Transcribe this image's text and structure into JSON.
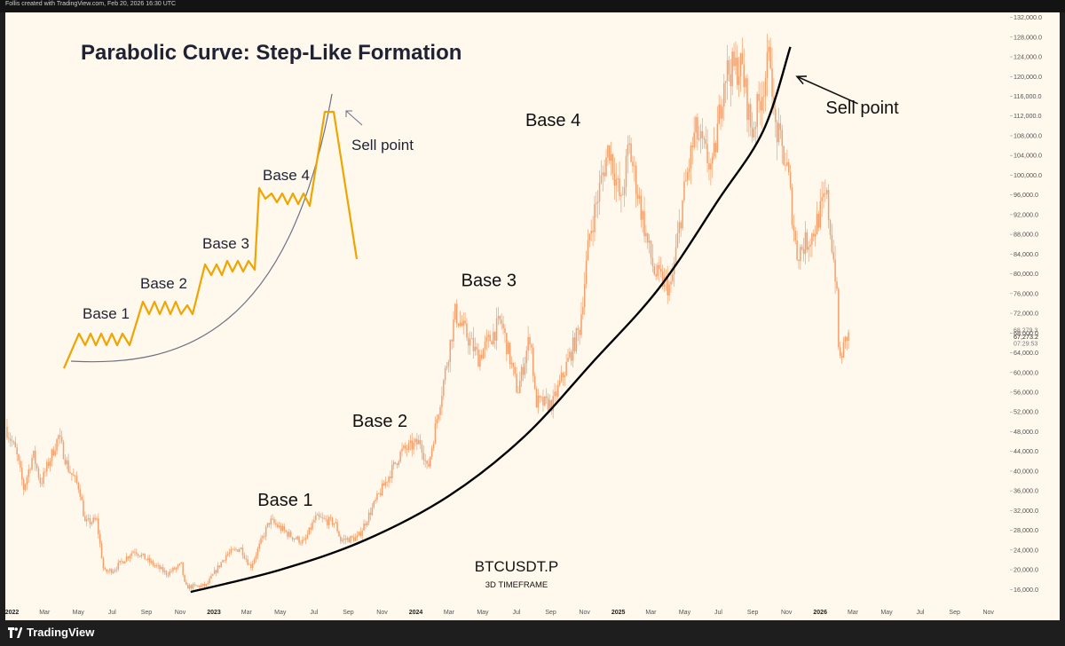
{
  "header": {
    "attribution": "Follis created with TradingView.com, Feb 20, 2026 16:30 UTC"
  },
  "footer": {
    "brand": "TradingView",
    "logo_icon": "tradingview-logo-icon"
  },
  "chart_data": {
    "type": "candlestick",
    "title": "Parabolic Curve: Step-Like Formation",
    "symbol": "BTCUSDT.P",
    "timeframe": "3D TIMEFRAME",
    "candle_color": "#f4a06c",
    "curve_color": "#000000",
    "price_labels": {
      "last_price": "67,273.2",
      "countdown": "07:29:53",
      "hidden_above": "68,279.3"
    },
    "y_axis": {
      "ylim": [
        13000,
        133000
      ],
      "ticks": [
        16000,
        20000,
        24000,
        28000,
        32000,
        36000,
        40000,
        44000,
        48000,
        52000,
        56000,
        60000,
        64000,
        68000,
        72000,
        76000,
        80000,
        84000,
        88000,
        92000,
        96000,
        100000,
        104000,
        108000,
        112000,
        116000,
        120000,
        124000,
        128000,
        132000
      ],
      "tick_labels": [
        "16,000.0",
        "20,000.0",
        "24,000.0",
        "28,000.0",
        "32,000.0",
        "36,000.0",
        "40,000.0",
        "44,000.0",
        "48,000.0",
        "52,000.0",
        "56,000.0",
        "60,000.0",
        "64,000.0",
        "68,000.0",
        "72,000.0",
        "76,000.0",
        "80,000.0",
        "84,000.0",
        "88,000.0",
        "92,000.0",
        "96,000.0",
        "100,000.0",
        "104,000.0",
        "108,000.0",
        "112,000.0",
        "116,000.0",
        "120,000.0",
        "124,000.0",
        "128,000.0",
        "132,000.0"
      ]
    },
    "x_axis": {
      "xlim": [
        "2021-12-20",
        "2026-12-10"
      ],
      "ticks": [
        {
          "date": "2022-01-01",
          "label": "2022",
          "major": true
        },
        {
          "date": "2022-03-01",
          "label": "Mar"
        },
        {
          "date": "2022-05-01",
          "label": "May"
        },
        {
          "date": "2022-07-01",
          "label": "Jul"
        },
        {
          "date": "2022-09-01",
          "label": "Sep"
        },
        {
          "date": "2022-11-01",
          "label": "Nov"
        },
        {
          "date": "2023-01-01",
          "label": "2023",
          "major": true
        },
        {
          "date": "2023-03-01",
          "label": "Mar"
        },
        {
          "date": "2023-05-01",
          "label": "May"
        },
        {
          "date": "2023-07-01",
          "label": "Jul"
        },
        {
          "date": "2023-09-01",
          "label": "Sep"
        },
        {
          "date": "2023-11-01",
          "label": "Nov"
        },
        {
          "date": "2024-01-01",
          "label": "2024",
          "major": true
        },
        {
          "date": "2024-03-01",
          "label": "Mar"
        },
        {
          "date": "2024-05-01",
          "label": "May"
        },
        {
          "date": "2024-07-01",
          "label": "Jul"
        },
        {
          "date": "2024-09-01",
          "label": "Sep"
        },
        {
          "date": "2024-11-01",
          "label": "Nov"
        },
        {
          "date": "2025-01-01",
          "label": "2025",
          "major": true
        },
        {
          "date": "2025-03-01",
          "label": "Mar"
        },
        {
          "date": "2025-05-01",
          "label": "May"
        },
        {
          "date": "2025-07-01",
          "label": "Jul"
        },
        {
          "date": "2025-09-01",
          "label": "Sep"
        },
        {
          "date": "2025-11-01",
          "label": "Nov"
        },
        {
          "date": "2026-01-01",
          "label": "2026",
          "major": true
        },
        {
          "date": "2026-03-01",
          "label": "Mar"
        },
        {
          "date": "2026-05-01",
          "label": "May"
        },
        {
          "date": "2026-07-01",
          "label": "Jul"
        },
        {
          "date": "2026-09-01",
          "label": "Sep"
        },
        {
          "date": "2026-11-01",
          "label": "Nov"
        }
      ]
    },
    "price_path": [
      {
        "date": "2021-12-22",
        "price": 49000
      },
      {
        "date": "2022-01-10",
        "price": 44000
      },
      {
        "date": "2022-01-24",
        "price": 36500
      },
      {
        "date": "2022-02-10",
        "price": 43500
      },
      {
        "date": "2022-02-24",
        "price": 37500
      },
      {
        "date": "2022-03-28",
        "price": 47000
      },
      {
        "date": "2022-04-15",
        "price": 40500
      },
      {
        "date": "2022-05-05",
        "price": 36500
      },
      {
        "date": "2022-05-15",
        "price": 29500
      },
      {
        "date": "2022-06-05",
        "price": 30000
      },
      {
        "date": "2022-06-18",
        "price": 19500
      },
      {
        "date": "2022-07-05",
        "price": 20000
      },
      {
        "date": "2022-08-12",
        "price": 24000
      },
      {
        "date": "2022-09-10",
        "price": 21500
      },
      {
        "date": "2022-10-10",
        "price": 19200
      },
      {
        "date": "2022-11-05",
        "price": 21000
      },
      {
        "date": "2022-11-12",
        "price": 16500
      },
      {
        "date": "2022-12-20",
        "price": 16800
      },
      {
        "date": "2023-01-25",
        "price": 23000
      },
      {
        "date": "2023-02-20",
        "price": 24500
      },
      {
        "date": "2023-03-10",
        "price": 20500
      },
      {
        "date": "2023-04-14",
        "price": 30000
      },
      {
        "date": "2023-05-20",
        "price": 27000
      },
      {
        "date": "2023-06-15",
        "price": 25500
      },
      {
        "date": "2023-07-05",
        "price": 30500
      },
      {
        "date": "2023-08-10",
        "price": 29500
      },
      {
        "date": "2023-08-20",
        "price": 26000
      },
      {
        "date": "2023-09-20",
        "price": 26500
      },
      {
        "date": "2023-10-25",
        "price": 34500
      },
      {
        "date": "2023-12-08",
        "price": 44000
      },
      {
        "date": "2024-01-12",
        "price": 46000
      },
      {
        "date": "2024-01-24",
        "price": 40000
      },
      {
        "date": "2024-02-28",
        "price": 62000
      },
      {
        "date": "2024-03-14",
        "price": 72000
      },
      {
        "date": "2024-04-25",
        "price": 63000
      },
      {
        "date": "2024-06-05",
        "price": 70500
      },
      {
        "date": "2024-07-05",
        "price": 56000
      },
      {
        "date": "2024-07-28",
        "price": 68000
      },
      {
        "date": "2024-08-06",
        "price": 54000
      },
      {
        "date": "2024-09-06",
        "price": 53500
      },
      {
        "date": "2024-10-25",
        "price": 69000
      },
      {
        "date": "2024-11-12",
        "price": 88000
      },
      {
        "date": "2024-12-17",
        "price": 106000
      },
      {
        "date": "2025-01-08",
        "price": 94000
      },
      {
        "date": "2025-01-22",
        "price": 106000
      },
      {
        "date": "2025-02-25",
        "price": 86000
      },
      {
        "date": "2025-03-10",
        "price": 80000
      },
      {
        "date": "2025-04-08",
        "price": 77000
      },
      {
        "date": "2025-05-01",
        "price": 96000
      },
      {
        "date": "2025-05-22",
        "price": 109000
      },
      {
        "date": "2025-06-22",
        "price": 101000
      },
      {
        "date": "2025-07-14",
        "price": 121000
      },
      {
        "date": "2025-08-14",
        "price": 122000
      },
      {
        "date": "2025-09-01",
        "price": 108500
      },
      {
        "date": "2025-10-06",
        "price": 125000
      },
      {
        "date": "2025-10-11",
        "price": 111000
      },
      {
        "date": "2025-11-05",
        "price": 101000
      },
      {
        "date": "2025-11-21",
        "price": 84000
      },
      {
        "date": "2025-12-20",
        "price": 88000
      },
      {
        "date": "2026-01-14",
        "price": 96000
      },
      {
        "date": "2026-02-01",
        "price": 78000
      },
      {
        "date": "2026-02-06",
        "price": 62000
      },
      {
        "date": "2026-02-20",
        "price": 67300
      }
    ],
    "parabola": {
      "points": [
        {
          "date": "2022-11-20",
          "price": 15500
        },
        {
          "date": "2023-05-01",
          "price": 20000
        },
        {
          "date": "2023-10-01",
          "price": 26000
        },
        {
          "date": "2024-03-01",
          "price": 35000
        },
        {
          "date": "2024-07-15",
          "price": 47000
        },
        {
          "date": "2024-11-15",
          "price": 62000
        },
        {
          "date": "2025-03-15",
          "price": 77000
        },
        {
          "date": "2025-07-01",
          "price": 95000
        },
        {
          "date": "2025-09-20",
          "price": 109000
        },
        {
          "date": "2025-11-08",
          "price": 126000
        }
      ]
    },
    "annotations": [
      {
        "text": "Base 1",
        "date": "2023-05-10",
        "price": 33000
      },
      {
        "text": "Base 2",
        "date": "2023-10-28",
        "price": 49000
      },
      {
        "text": "Base 3",
        "date": "2024-05-12",
        "price": 77500
      },
      {
        "text": "Base 4",
        "date": "2024-09-05",
        "price": 110000
      },
      {
        "text": "Sell point",
        "date": "2026-03-18",
        "price": 112500
      }
    ],
    "sell_arrow": {
      "from": {
        "date": "2026-03-10",
        "price": 114500
      },
      "to": {
        "date": "2025-11-20",
        "price": 120000
      }
    },
    "inset": {
      "title": "Parabolic Curve: Step-Like Formation",
      "labels": [
        "Base 1",
        "Base 2",
        "Base 3",
        "Base 4",
        "Sell point"
      ]
    }
  }
}
